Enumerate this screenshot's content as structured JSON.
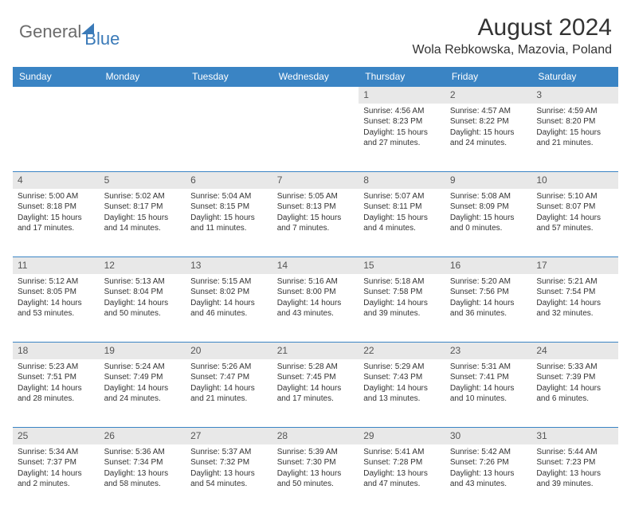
{
  "brand": {
    "part1": "General",
    "part2": "Blue"
  },
  "title": "August 2024",
  "location": "Wola Rebkowska, Mazovia, Poland",
  "colors": {
    "header_bg": "#3a84c4",
    "header_text": "#ffffff",
    "daynum_bg": "#e8e8e8",
    "text": "#333333",
    "brand_gray": "#6b6b6b",
    "brand_blue": "#3a7ab8"
  },
  "weekdays": [
    "Sunday",
    "Monday",
    "Tuesday",
    "Wednesday",
    "Thursday",
    "Friday",
    "Saturday"
  ],
  "weeks": [
    [
      null,
      null,
      null,
      null,
      {
        "n": "1",
        "sr": "Sunrise: 4:56 AM",
        "ss": "Sunset: 8:23 PM",
        "d1": "Daylight: 15 hours",
        "d2": "and 27 minutes."
      },
      {
        "n": "2",
        "sr": "Sunrise: 4:57 AM",
        "ss": "Sunset: 8:22 PM",
        "d1": "Daylight: 15 hours",
        "d2": "and 24 minutes."
      },
      {
        "n": "3",
        "sr": "Sunrise: 4:59 AM",
        "ss": "Sunset: 8:20 PM",
        "d1": "Daylight: 15 hours",
        "d2": "and 21 minutes."
      }
    ],
    [
      {
        "n": "4",
        "sr": "Sunrise: 5:00 AM",
        "ss": "Sunset: 8:18 PM",
        "d1": "Daylight: 15 hours",
        "d2": "and 17 minutes."
      },
      {
        "n": "5",
        "sr": "Sunrise: 5:02 AM",
        "ss": "Sunset: 8:17 PM",
        "d1": "Daylight: 15 hours",
        "d2": "and 14 minutes."
      },
      {
        "n": "6",
        "sr": "Sunrise: 5:04 AM",
        "ss": "Sunset: 8:15 PM",
        "d1": "Daylight: 15 hours",
        "d2": "and 11 minutes."
      },
      {
        "n": "7",
        "sr": "Sunrise: 5:05 AM",
        "ss": "Sunset: 8:13 PM",
        "d1": "Daylight: 15 hours",
        "d2": "and 7 minutes."
      },
      {
        "n": "8",
        "sr": "Sunrise: 5:07 AM",
        "ss": "Sunset: 8:11 PM",
        "d1": "Daylight: 15 hours",
        "d2": "and 4 minutes."
      },
      {
        "n": "9",
        "sr": "Sunrise: 5:08 AM",
        "ss": "Sunset: 8:09 PM",
        "d1": "Daylight: 15 hours",
        "d2": "and 0 minutes."
      },
      {
        "n": "10",
        "sr": "Sunrise: 5:10 AM",
        "ss": "Sunset: 8:07 PM",
        "d1": "Daylight: 14 hours",
        "d2": "and 57 minutes."
      }
    ],
    [
      {
        "n": "11",
        "sr": "Sunrise: 5:12 AM",
        "ss": "Sunset: 8:05 PM",
        "d1": "Daylight: 14 hours",
        "d2": "and 53 minutes."
      },
      {
        "n": "12",
        "sr": "Sunrise: 5:13 AM",
        "ss": "Sunset: 8:04 PM",
        "d1": "Daylight: 14 hours",
        "d2": "and 50 minutes."
      },
      {
        "n": "13",
        "sr": "Sunrise: 5:15 AM",
        "ss": "Sunset: 8:02 PM",
        "d1": "Daylight: 14 hours",
        "d2": "and 46 minutes."
      },
      {
        "n": "14",
        "sr": "Sunrise: 5:16 AM",
        "ss": "Sunset: 8:00 PM",
        "d1": "Daylight: 14 hours",
        "d2": "and 43 minutes."
      },
      {
        "n": "15",
        "sr": "Sunrise: 5:18 AM",
        "ss": "Sunset: 7:58 PM",
        "d1": "Daylight: 14 hours",
        "d2": "and 39 minutes."
      },
      {
        "n": "16",
        "sr": "Sunrise: 5:20 AM",
        "ss": "Sunset: 7:56 PM",
        "d1": "Daylight: 14 hours",
        "d2": "and 36 minutes."
      },
      {
        "n": "17",
        "sr": "Sunrise: 5:21 AM",
        "ss": "Sunset: 7:54 PM",
        "d1": "Daylight: 14 hours",
        "d2": "and 32 minutes."
      }
    ],
    [
      {
        "n": "18",
        "sr": "Sunrise: 5:23 AM",
        "ss": "Sunset: 7:51 PM",
        "d1": "Daylight: 14 hours",
        "d2": "and 28 minutes."
      },
      {
        "n": "19",
        "sr": "Sunrise: 5:24 AM",
        "ss": "Sunset: 7:49 PM",
        "d1": "Daylight: 14 hours",
        "d2": "and 24 minutes."
      },
      {
        "n": "20",
        "sr": "Sunrise: 5:26 AM",
        "ss": "Sunset: 7:47 PM",
        "d1": "Daylight: 14 hours",
        "d2": "and 21 minutes."
      },
      {
        "n": "21",
        "sr": "Sunrise: 5:28 AM",
        "ss": "Sunset: 7:45 PM",
        "d1": "Daylight: 14 hours",
        "d2": "and 17 minutes."
      },
      {
        "n": "22",
        "sr": "Sunrise: 5:29 AM",
        "ss": "Sunset: 7:43 PM",
        "d1": "Daylight: 14 hours",
        "d2": "and 13 minutes."
      },
      {
        "n": "23",
        "sr": "Sunrise: 5:31 AM",
        "ss": "Sunset: 7:41 PM",
        "d1": "Daylight: 14 hours",
        "d2": "and 10 minutes."
      },
      {
        "n": "24",
        "sr": "Sunrise: 5:33 AM",
        "ss": "Sunset: 7:39 PM",
        "d1": "Daylight: 14 hours",
        "d2": "and 6 minutes."
      }
    ],
    [
      {
        "n": "25",
        "sr": "Sunrise: 5:34 AM",
        "ss": "Sunset: 7:37 PM",
        "d1": "Daylight: 14 hours",
        "d2": "and 2 minutes."
      },
      {
        "n": "26",
        "sr": "Sunrise: 5:36 AM",
        "ss": "Sunset: 7:34 PM",
        "d1": "Daylight: 13 hours",
        "d2": "and 58 minutes."
      },
      {
        "n": "27",
        "sr": "Sunrise: 5:37 AM",
        "ss": "Sunset: 7:32 PM",
        "d1": "Daylight: 13 hours",
        "d2": "and 54 minutes."
      },
      {
        "n": "28",
        "sr": "Sunrise: 5:39 AM",
        "ss": "Sunset: 7:30 PM",
        "d1": "Daylight: 13 hours",
        "d2": "and 50 minutes."
      },
      {
        "n": "29",
        "sr": "Sunrise: 5:41 AM",
        "ss": "Sunset: 7:28 PM",
        "d1": "Daylight: 13 hours",
        "d2": "and 47 minutes."
      },
      {
        "n": "30",
        "sr": "Sunrise: 5:42 AM",
        "ss": "Sunset: 7:26 PM",
        "d1": "Daylight: 13 hours",
        "d2": "and 43 minutes."
      },
      {
        "n": "31",
        "sr": "Sunrise: 5:44 AM",
        "ss": "Sunset: 7:23 PM",
        "d1": "Daylight: 13 hours",
        "d2": "and 39 minutes."
      }
    ]
  ]
}
